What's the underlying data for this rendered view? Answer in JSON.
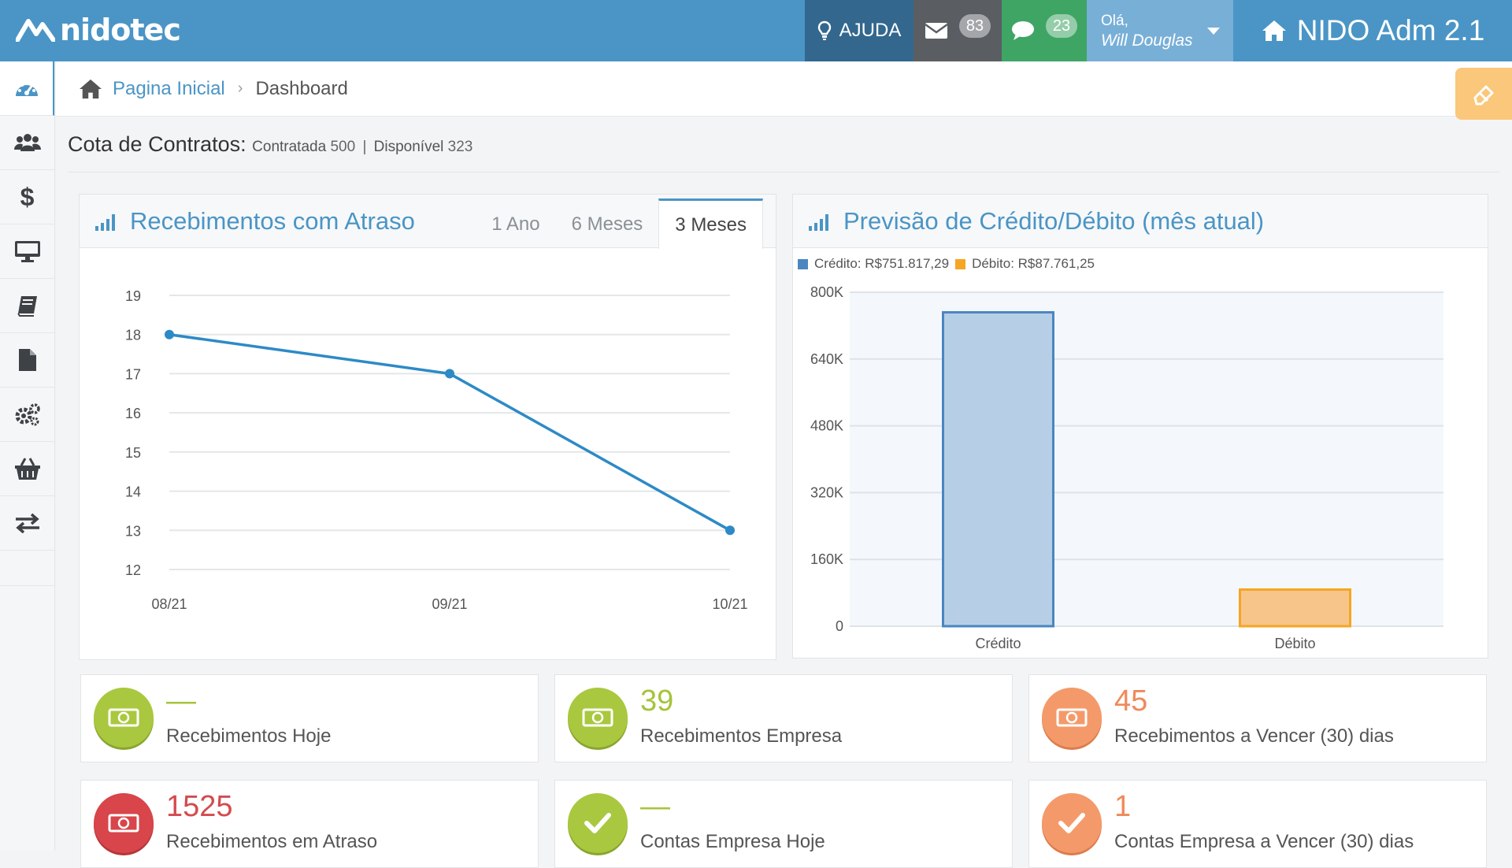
{
  "brand": {
    "name": "nidotec"
  },
  "topbar": {
    "help_label": "AJUDA",
    "mail_count": "83",
    "chat_count": "23",
    "greeting": "Olá,",
    "user_name": "Will Douglas",
    "app_title": "NIDO Adm 2.1"
  },
  "sidebar": {
    "items": [
      {
        "icon": "dashboard-icon"
      },
      {
        "icon": "users-icon"
      },
      {
        "icon": "dollar-icon"
      },
      {
        "icon": "monitor-icon"
      },
      {
        "icon": "book-icon"
      },
      {
        "icon": "file-icon"
      },
      {
        "icon": "settings-icon"
      },
      {
        "icon": "basket-icon"
      },
      {
        "icon": "transfer-icon"
      }
    ]
  },
  "breadcrumb": {
    "home": "Pagina Inicial",
    "current": "Dashboard"
  },
  "quota": {
    "title": "Cota de Contratos:",
    "contracted_label": "Contratada",
    "contracted_value": "500",
    "separator": "|",
    "available_label": "Disponível",
    "available_value": "323"
  },
  "panel_late": {
    "title": "Recebimentos com Atraso",
    "tabs": [
      "1 Ano",
      "6 Meses",
      "3 Meses"
    ],
    "active_tab": "3 Meses"
  },
  "panel_forecast": {
    "title": "Previsão de Crédito/Débito (mês atual)",
    "legend": [
      {
        "label": "Crédito: R$751.817,29",
        "color": "#4a86c0"
      },
      {
        "label": "Débito: R$87.761,25",
        "color": "#f5a623"
      }
    ]
  },
  "chart_data": [
    {
      "type": "line",
      "title": "Recebimentos com Atraso",
      "x": [
        "08/21",
        "09/21",
        "10/21"
      ],
      "series": [
        {
          "values": [
            18,
            17,
            13
          ],
          "color": "#2d8ac6"
        }
      ],
      "ylim": [
        12,
        19
      ],
      "yticks": [
        19,
        18,
        17,
        16,
        15,
        14,
        13,
        12
      ],
      "grid": true
    },
    {
      "type": "bar",
      "title": "Previsão de Crédito/Débito (mês atual)",
      "categories": [
        "Crédito",
        "Débito"
      ],
      "values": [
        751817.29,
        87761.25
      ],
      "colors": [
        "#b7cfe6",
        "#f7c48a"
      ],
      "borders": [
        "#4a86c0",
        "#f5a623"
      ],
      "ylim": [
        0,
        800000
      ],
      "yticks": [
        "0",
        "160K",
        "320K",
        "480K",
        "640K",
        "800K"
      ],
      "ytick_values": [
        0,
        160000,
        320000,
        480000,
        640000,
        800000
      ],
      "grid": true
    }
  ],
  "stats": [
    {
      "value": "—",
      "label": "Recebimentos Hoje",
      "color": "green",
      "icon": "money-icon"
    },
    {
      "value": "39",
      "label": "Recebimentos Empresa",
      "color": "green",
      "icon": "money-icon"
    },
    {
      "value": "45",
      "label": "Recebimentos a Vencer (30) dias",
      "color": "orange",
      "icon": "money-icon"
    },
    {
      "value": "1525",
      "label": "Recebimentos em Atraso",
      "color": "red",
      "icon": "money-icon"
    },
    {
      "value": "—",
      "label": "Contas Empresa Hoje",
      "color": "green",
      "icon": "check-icon"
    },
    {
      "value": "1",
      "label": "Contas Empresa a Vencer (30) dias",
      "color": "orange",
      "icon": "check-icon"
    }
  ]
}
